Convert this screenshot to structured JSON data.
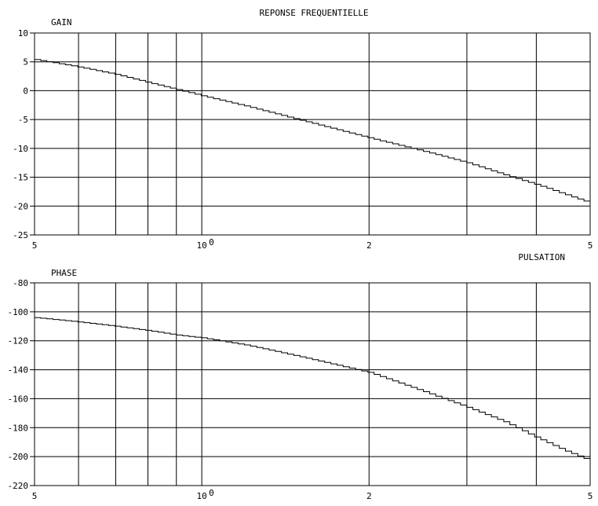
{
  "title": "REPONSE FREQUENTIELLE",
  "x_axis_label": "PULSATION",
  "chart_data": [
    {
      "type": "line",
      "name_label": "GAIN",
      "ylabel": "GAIN",
      "xscale": "log",
      "xlim": [
        0.5,
        5
      ],
      "ylim": [
        -25,
        10
      ],
      "grid": true,
      "x_ticks": [
        {
          "value": 0.5,
          "label": "5",
          "exp": ""
        },
        {
          "value": 1,
          "label": "10",
          "exp": "0"
        },
        {
          "value": 2,
          "label": "2",
          "exp": ""
        },
        {
          "value": 5,
          "label": "5",
          "exp": ""
        }
      ],
      "y_ticks": [
        10,
        5,
        0,
        -5,
        -10,
        -15,
        -20,
        -25
      ],
      "x": [
        0.5,
        0.6,
        0.7,
        0.8,
        0.9,
        1.0,
        1.2,
        1.5,
        2.0,
        2.5,
        3.0,
        3.5,
        4.0,
        4.5,
        5.0
      ],
      "y": [
        5.4,
        4.1,
        2.8,
        1.4,
        0.2,
        -0.9,
        -2.7,
        -5.1,
        -8.2,
        -10.5,
        -12.5,
        -14.6,
        -16.3,
        -18.0,
        -19.5
      ]
    },
    {
      "type": "line",
      "name_label": "PHASE",
      "ylabel": "PHASE",
      "xscale": "log",
      "xlim": [
        0.5,
        5
      ],
      "ylim": [
        -220,
        -80
      ],
      "grid": true,
      "x_ticks": [
        {
          "value": 0.5,
          "label": "5",
          "exp": ""
        },
        {
          "value": 1,
          "label": "10",
          "exp": "0"
        },
        {
          "value": 2,
          "label": "2",
          "exp": ""
        },
        {
          "value": 5,
          "label": "5",
          "exp": ""
        }
      ],
      "y_ticks": [
        -80,
        -100,
        -120,
        -140,
        -160,
        -180,
        -200,
        -220
      ],
      "x": [
        0.5,
        0.6,
        0.7,
        0.8,
        0.9,
        1.0,
        1.2,
        1.5,
        2.0,
        2.5,
        3.0,
        3.5,
        4.0,
        4.5,
        5.0
      ],
      "y": [
        -104,
        -107,
        -110,
        -113,
        -116,
        -118,
        -123,
        -131,
        -142,
        -155,
        -166,
        -176,
        -187,
        -196,
        -203
      ]
    }
  ]
}
